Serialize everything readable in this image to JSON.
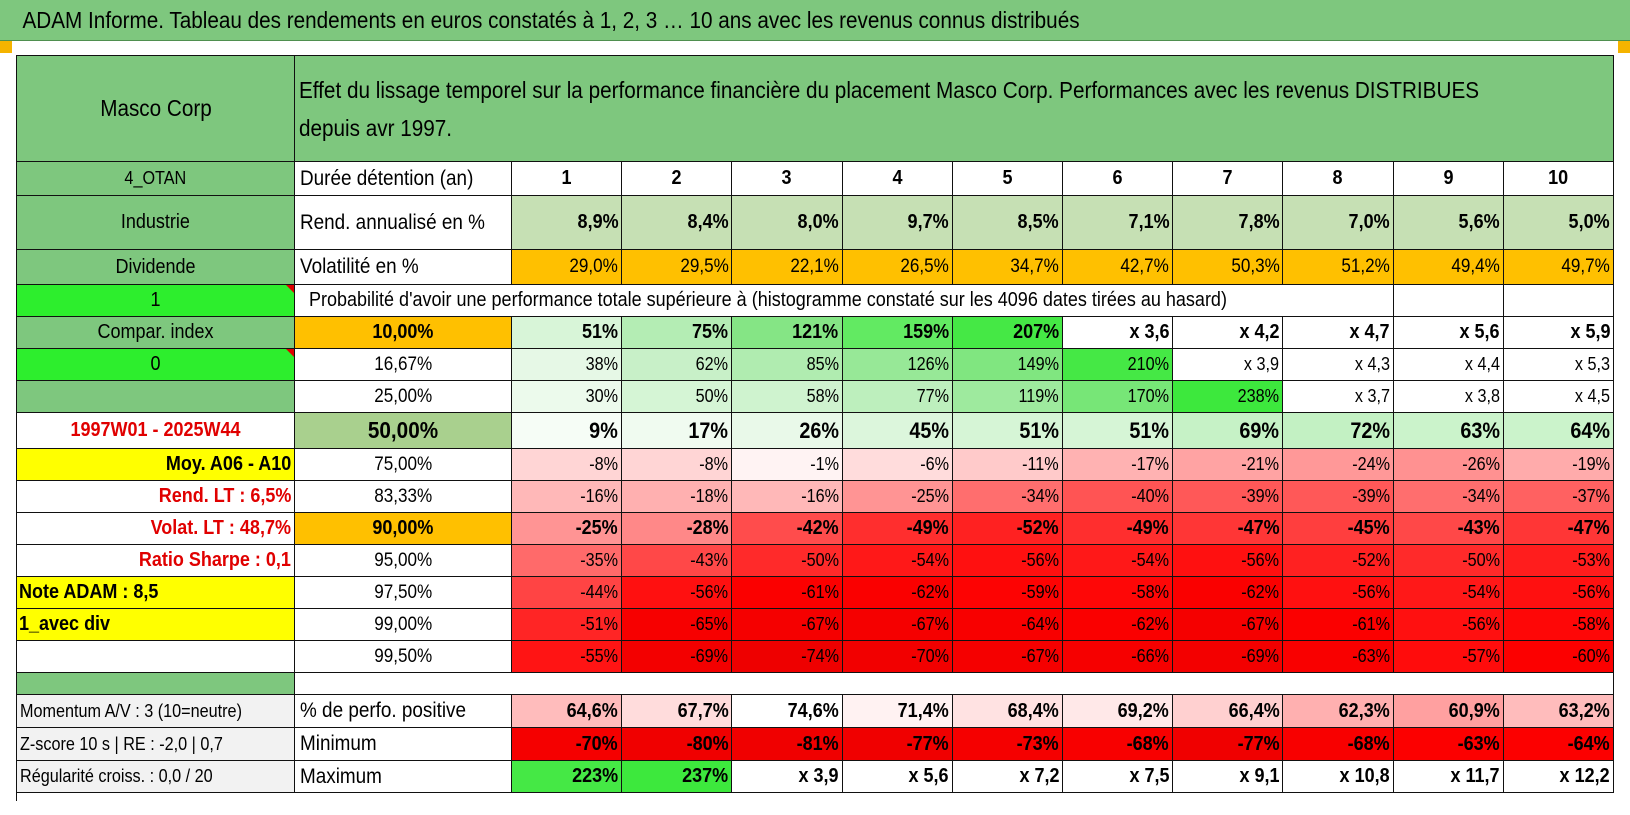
{
  "title": "ADAM Informe. Tableau des rendements en euros constatés à 1, 2, 3 … 10 ans avec les revenus connus distribués",
  "header": {
    "company": "Masco Corp",
    "description": "Effet du lissage temporel sur la performance financière du placement Masco Corp. Performances avec les revenus DISTRIBUES depuis avr 1997."
  },
  "left": {
    "code": "4_OTAN",
    "sector": "Industrie",
    "dividend": "Dividende",
    "flag1": "1",
    "compar": "Compar. index",
    "flag0": "0",
    "period": "1997W01 - 2025W44",
    "moy": "Moy. A06 - A10",
    "rend_lt": "Rend. LT :   6,5%",
    "volat_lt": "Volat. LT :   48,7%",
    "sharpe": "Ratio Sharpe :   0,1",
    "note": "Note ADAM : 8,5",
    "avec_div": "1_avec div",
    "momentum": "Momentum A/V : 3 (10=neutre)",
    "zscore": "Z-score 10 s | RE : -2,0 | 0,7",
    "regularite": "Régularité croiss. : 0,0 / 20"
  },
  "labels": {
    "duree": "Durée détention (an)",
    "rend": "Rend. annualisé en %",
    "volat": "Volatilité en %",
    "proba": "Probabilité d'avoir une performance totale supérieure à (histogramme constaté sur les 4096 dates tirées au hasard)",
    "pct_pos": "% de perfo. positive",
    "minimum": "Minimum",
    "maximum": "Maximum"
  },
  "years": [
    "1",
    "2",
    "3",
    "4",
    "5",
    "6",
    "7",
    "8",
    "9",
    "10"
  ],
  "rend": [
    "8,9%",
    "8,4%",
    "8,0%",
    "9,7%",
    "8,5%",
    "7,1%",
    "7,8%",
    "7,0%",
    "5,6%",
    "5,0%"
  ],
  "volat": [
    "29,0%",
    "29,5%",
    "22,1%",
    "26,5%",
    "34,7%",
    "42,7%",
    "50,3%",
    "51,2%",
    "49,4%",
    "49,7%"
  ],
  "quantiles": [
    {
      "label": "10,00%",
      "values": [
        "51%",
        "75%",
        "121%",
        "159%",
        "207%",
        "x 3,6",
        "x 4,2",
        "x 4,7",
        "x 5,6",
        "x 5,9"
      ],
      "colors": [
        "#d8f5d8",
        "#b4edb4",
        "#85e585",
        "#62ea62",
        "#45e845",
        "#ffffff",
        "#ffffff",
        "#ffffff",
        "#ffffff",
        "#ffffff"
      ]
    },
    {
      "label": "16,67%",
      "values": [
        "38%",
        "62%",
        "85%",
        "126%",
        "149%",
        "210%",
        "x 3,9",
        "x 4,3",
        "x 4,4",
        "x 5,3"
      ],
      "colors": [
        "#e6f8e6",
        "#c8f0c8",
        "#b0ecb0",
        "#97e897",
        "#80e680",
        "#45e845",
        "#ffffff",
        "#ffffff",
        "#ffffff",
        "#ffffff"
      ]
    },
    {
      "label": "25,00%",
      "values": [
        "30%",
        "50%",
        "58%",
        "77%",
        "119%",
        "170%",
        "238%",
        "x 3,7",
        "x 3,8",
        "x 4,5"
      ],
      "colors": [
        "#ecfaec",
        "#d5f5d5",
        "#cff3cf",
        "#bdefbd",
        "#9eea9e",
        "#77e677",
        "#3de83d",
        "#ffffff",
        "#ffffff",
        "#ffffff"
      ]
    },
    {
      "label": "50,00%",
      "values": [
        "9%",
        "17%",
        "26%",
        "45%",
        "51%",
        "51%",
        "69%",
        "72%",
        "63%",
        "64%"
      ],
      "colors": [
        "#f6fdf6",
        "#f0fbf0",
        "#e9f9e9",
        "#dcf6dc",
        "#d6f5d6",
        "#d6f5d6",
        "#c6f2c6",
        "#c3f1c3",
        "#cbf3cb",
        "#cbf3cb"
      ]
    },
    {
      "label": "75,00%",
      "values": [
        "-8%",
        "-8%",
        "-1%",
        "-6%",
        "-11%",
        "-17%",
        "-21%",
        "-24%",
        "-26%",
        "-19%"
      ],
      "colors": [
        "#ffd5d5",
        "#ffd5d5",
        "#fff3f3",
        "#ffdcdc",
        "#ffcaca",
        "#ffb2b2",
        "#ffa3a3",
        "#ff9898",
        "#ff9191",
        "#ffabab"
      ]
    },
    {
      "label": "83,33%",
      "values": [
        "-16%",
        "-18%",
        "-16%",
        "-25%",
        "-34%",
        "-40%",
        "-39%",
        "-39%",
        "-34%",
        "-37%"
      ],
      "colors": [
        "#ffb8b8",
        "#ffb0b0",
        "#ffb8b8",
        "#ff9494",
        "#ff6e6e",
        "#ff5454",
        "#ff5858",
        "#ff5858",
        "#ff6e6e",
        "#ff6161"
      ]
    },
    {
      "label": "90,00%",
      "values": [
        "-25%",
        "-28%",
        "-42%",
        "-49%",
        "-52%",
        "-49%",
        "-47%",
        "-45%",
        "-43%",
        "-47%"
      ],
      "colors": [
        "#ff9494",
        "#ff8888",
        "#ff4c4c",
        "#ff2e2e",
        "#ff2121",
        "#ff2e2e",
        "#ff3636",
        "#ff3e3e",
        "#ff4848",
        "#ff3636"
      ]
    },
    {
      "label": "95,00%",
      "values": [
        "-35%",
        "-43%",
        "-50%",
        "-54%",
        "-56%",
        "-54%",
        "-56%",
        "-52%",
        "-50%",
        "-53%"
      ],
      "colors": [
        "#ff6a6a",
        "#ff4848",
        "#ff2a2a",
        "#ff1818",
        "#ff1010",
        "#ff1818",
        "#ff1010",
        "#ff2121",
        "#ff2a2a",
        "#ff1d1d"
      ]
    },
    {
      "label": "97,50%",
      "values": [
        "-44%",
        "-56%",
        "-61%",
        "-62%",
        "-59%",
        "-58%",
        "-62%",
        "-56%",
        "-54%",
        "-56%"
      ],
      "colors": [
        "#ff4444",
        "#ff1010",
        "#fb0000",
        "#fa0000",
        "#fd0303",
        "#fe0707",
        "#fa0000",
        "#ff1010",
        "#ff1818",
        "#ff1010"
      ]
    },
    {
      "label": "99,00%",
      "values": [
        "-51%",
        "-65%",
        "-67%",
        "-67%",
        "-64%",
        "-62%",
        "-67%",
        "-61%",
        "-56%",
        "-58%"
      ],
      "colors": [
        "#ff2525",
        "#f70000",
        "#f50000",
        "#f50000",
        "#f80000",
        "#fa0000",
        "#f50000",
        "#fb0000",
        "#ff1010",
        "#fe0707"
      ]
    },
    {
      "label": "99,50%",
      "values": [
        "-55%",
        "-69%",
        "-74%",
        "-70%",
        "-67%",
        "-66%",
        "-69%",
        "-63%",
        "-57%",
        "-60%"
      ],
      "colors": [
        "#ff1414",
        "#f30000",
        "#ee0000",
        "#f20000",
        "#f50000",
        "#f60000",
        "#f30000",
        "#f90000",
        "#ff0c0c",
        "#fc0000"
      ]
    }
  ],
  "pct_pos": {
    "values": [
      "64,6%",
      "67,7%",
      "74,6%",
      "71,4%",
      "68,4%",
      "69,2%",
      "66,4%",
      "62,3%",
      "60,9%",
      "63,2%"
    ],
    "colors": [
      "#ffbcbc",
      "#ffdcdc",
      "#ffffff",
      "#fff2f2",
      "#ffe2e2",
      "#ffe8e8",
      "#ffd0d0",
      "#ffb0b0",
      "#ffa0a0",
      "#ffbcbc"
    ]
  },
  "minimum": {
    "values": [
      "-70%",
      "-80%",
      "-81%",
      "-77%",
      "-73%",
      "-68%",
      "-77%",
      "-68%",
      "-63%",
      "-64%"
    ],
    "colors": [
      "#f50000",
      "#f00000",
      "#f00000",
      "#f00000",
      "#f50000",
      "#f80000",
      "#f00000",
      "#f80000",
      "#fc0000",
      "#fc0000"
    ]
  },
  "maximum": {
    "values": [
      "223%",
      "237%",
      "x 3,9",
      "x 5,6",
      "x 7,2",
      "x 7,5",
      "x 9,1",
      "x 10,8",
      "x 11,7",
      "x 12,2"
    ],
    "colors": [
      "#45e845",
      "#3de83d",
      "#ffffff",
      "#ffffff",
      "#ffffff",
      "#ffffff",
      "#ffffff",
      "#ffffff",
      "#ffffff",
      "#ffffff"
    ]
  }
}
